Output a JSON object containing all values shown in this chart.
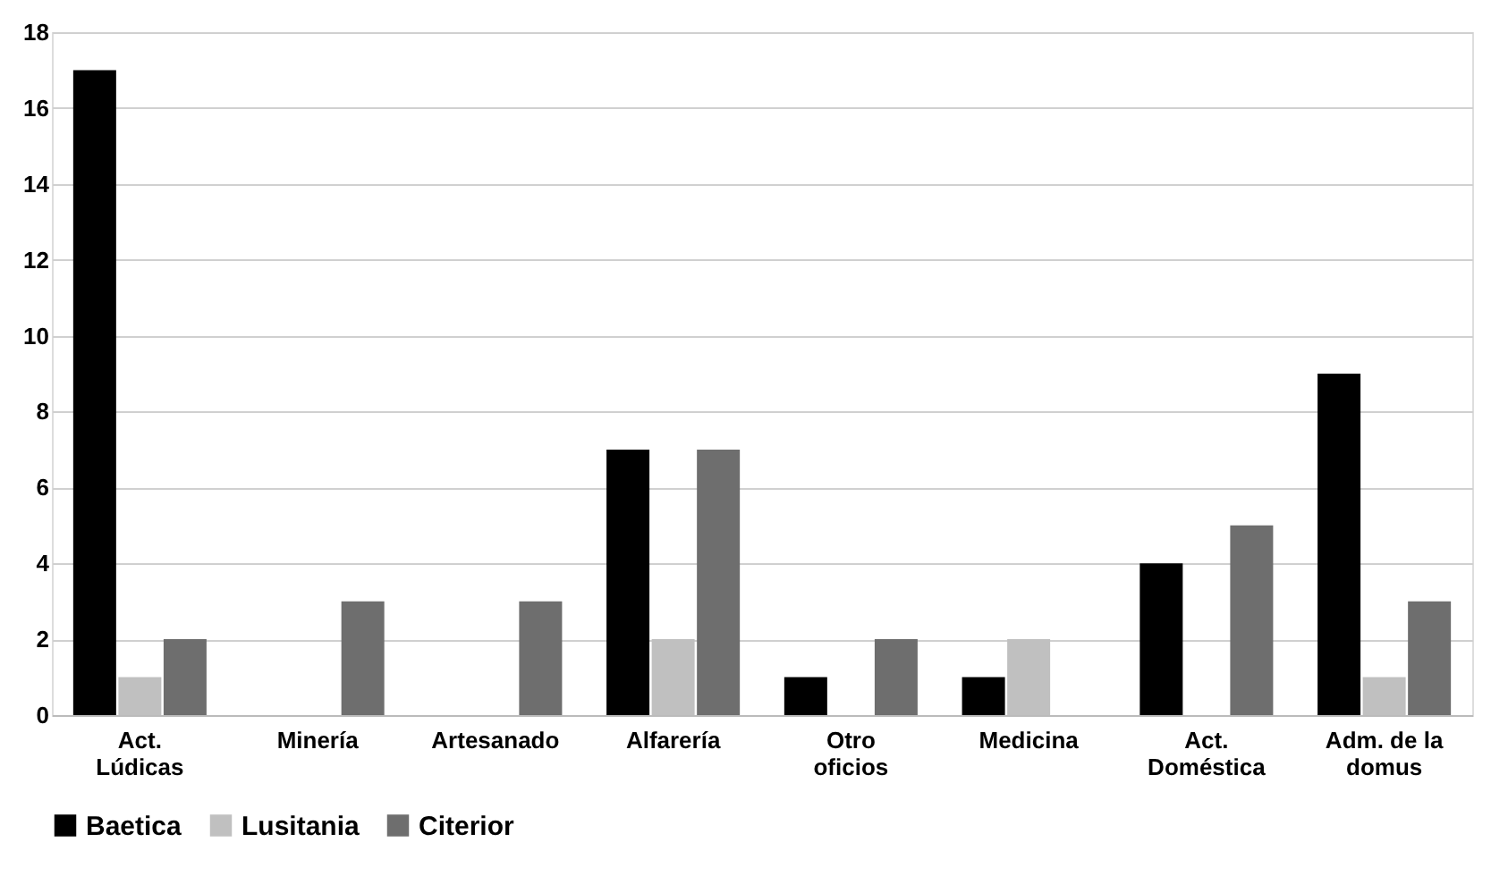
{
  "chart_data": {
    "type": "bar",
    "categories": [
      "Act. Lúdicas",
      "Minería",
      "Artesanado",
      "Alfarería",
      "Otro oficios",
      "Medicina",
      "Act. Doméstica",
      "Adm. de la domus"
    ],
    "series": [
      {
        "name": "Baetica",
        "color": "#000000",
        "values": [
          17,
          null,
          null,
          7,
          1,
          1,
          4,
          9
        ]
      },
      {
        "name": "Lusitania",
        "color": "#c0c0c0",
        "values": [
          1,
          null,
          null,
          2,
          null,
          2,
          null,
          1
        ]
      },
      {
        "name": "Citerior",
        "color": "#6e6e6e",
        "values": [
          2,
          3,
          3,
          7,
          2,
          null,
          5,
          3
        ]
      }
    ],
    "ylim": [
      0,
      18
    ],
    "yticks": [
      0,
      2,
      4,
      6,
      8,
      10,
      12,
      14,
      16,
      18
    ],
    "grid": "y",
    "legend": "bottom"
  }
}
